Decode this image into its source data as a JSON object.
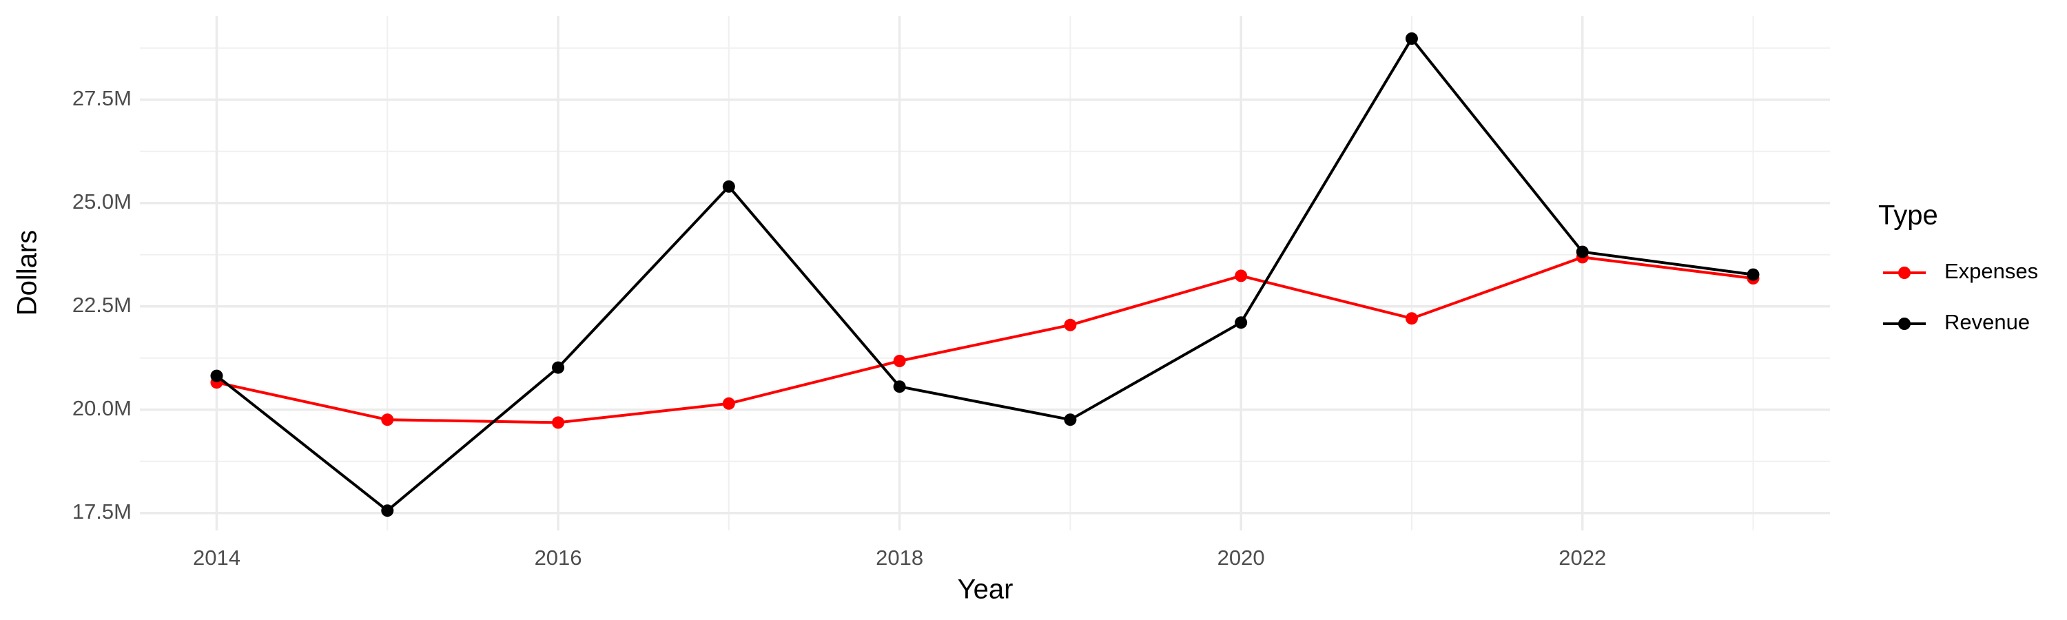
{
  "chart_data": {
    "type": "line",
    "x_label": "Year",
    "y_label": "Dollars",
    "legend_title": "Type",
    "legend_position": "right",
    "x": [
      2014,
      2015,
      2016,
      2017,
      2018,
      2019,
      2020,
      2021,
      2022,
      2023
    ],
    "series": [
      {
        "name": "Expenses",
        "color": "#ff0000",
        "values": [
          20660000,
          19760000,
          19690000,
          20150000,
          21180000,
          22050000,
          23240000,
          22210000,
          23690000,
          23180000
        ]
      },
      {
        "name": "Revenue",
        "color": "#000000",
        "values": [
          20820000,
          17560000,
          21020000,
          25400000,
          20560000,
          19760000,
          22110000,
          28980000,
          23820000,
          23270000
        ]
      }
    ],
    "xlim": [
      2013.55,
      2023.45
    ],
    "xticks": [
      2014,
      2016,
      2018,
      2020,
      2022
    ],
    "ylim": [
      17080000,
      29530000
    ],
    "yticks": [
      {
        "value": 17500000,
        "label": "17.5M"
      },
      {
        "value": 20000000,
        "label": "20.0M"
      },
      {
        "value": 22500000,
        "label": "22.5M"
      },
      {
        "value": 25000000,
        "label": "25.0M"
      },
      {
        "value": 27500000,
        "label": "27.5M"
      }
    ],
    "grid": true
  }
}
